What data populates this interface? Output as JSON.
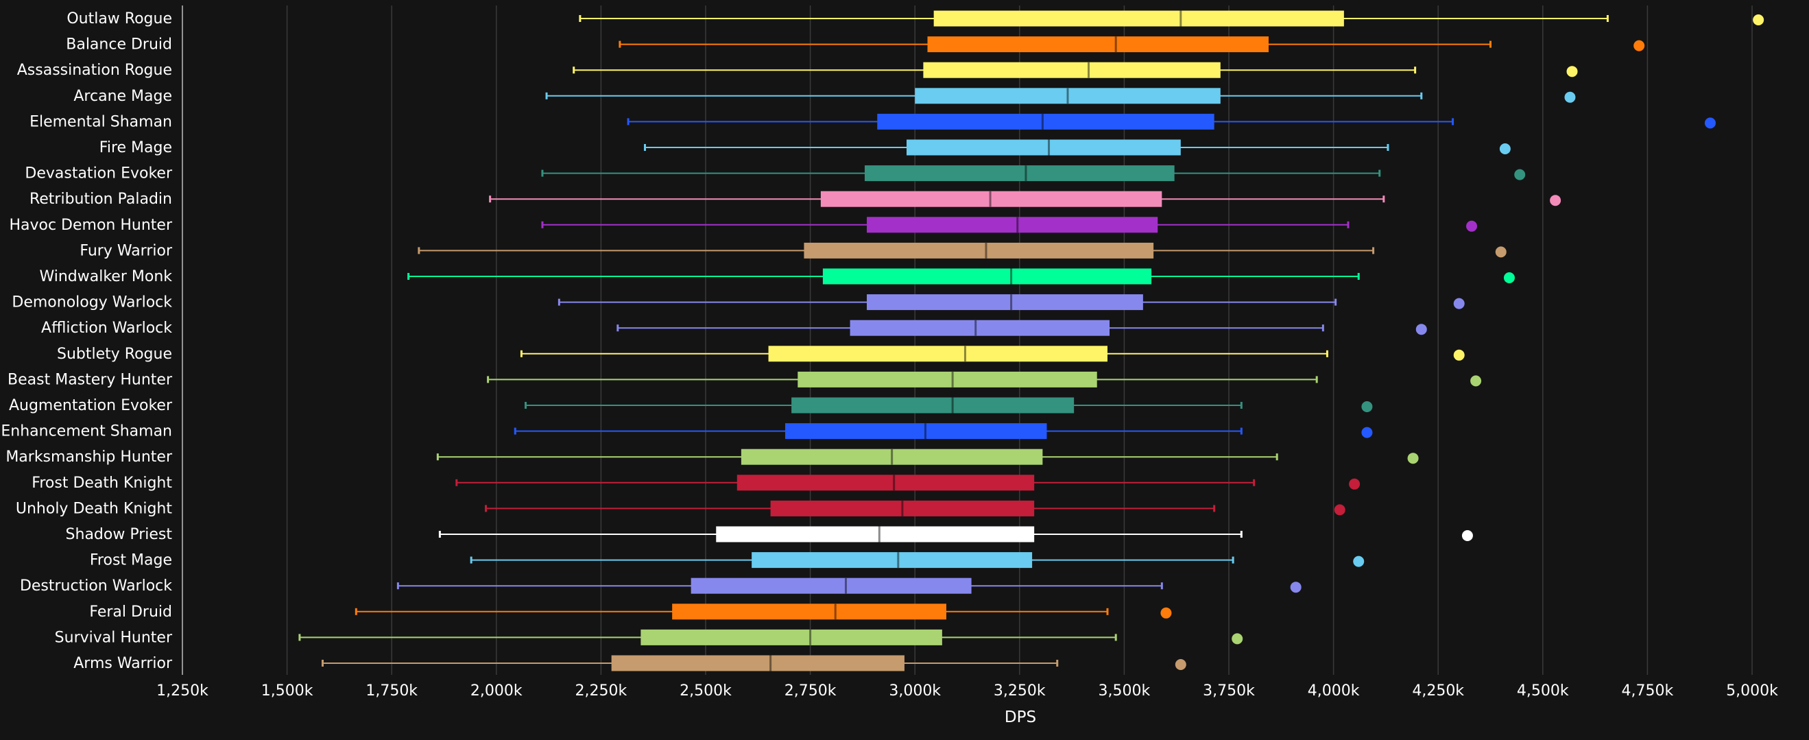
{
  "chart_data": {
    "type": "boxplot",
    "title": "",
    "xlabel": "DPS",
    "ylabel": "",
    "xlim": [
      1250000,
      5000000
    ],
    "tick_values": [
      1250000,
      1500000,
      1750000,
      2000000,
      2250000,
      2500000,
      2750000,
      3000000,
      3250000,
      3500000,
      3750000,
      4000000,
      4250000,
      4500000,
      4750000,
      5000000
    ],
    "tick_labels": [
      "1,250k",
      "1,500k",
      "1,750k",
      "2,000k",
      "2,250k",
      "2,500k",
      "2,750k",
      "3,000k",
      "3,250k",
      "3,500k",
      "3,750k",
      "4,000k",
      "4,250k",
      "4,500k",
      "4,750k",
      "5,000k"
    ],
    "grid": true,
    "legend": "none",
    "series": [
      {
        "label": "Outlaw Rogue",
        "color": "#FFF468",
        "min": 2200000,
        "q1": 3045000,
        "median": 3635000,
        "q3": 4025000,
        "max": 4655000,
        "outlier": 5015000
      },
      {
        "label": "Balance Druid",
        "color": "#FF7C0A",
        "min": 2295000,
        "q1": 3030000,
        "median": 3480000,
        "q3": 3845000,
        "max": 4375000,
        "outlier": 4730000
      },
      {
        "label": "Assassination Rogue",
        "color": "#FFF468",
        "min": 2185000,
        "q1": 3020000,
        "median": 3415000,
        "q3": 3730000,
        "max": 4195000,
        "outlier": 4570000
      },
      {
        "label": "Arcane Mage",
        "color": "#69CCF0",
        "min": 2120000,
        "q1": 3000000,
        "median": 3365000,
        "q3": 3730000,
        "max": 4210000,
        "outlier": 4565000
      },
      {
        "label": "Elemental Shaman",
        "color": "#2459FF",
        "min": 2315000,
        "q1": 2910000,
        "median": 3305000,
        "q3": 3715000,
        "max": 4285000,
        "outlier": 4900000
      },
      {
        "label": "Fire Mage",
        "color": "#69CCF0",
        "min": 2355000,
        "q1": 2980000,
        "median": 3320000,
        "q3": 3635000,
        "max": 4130000,
        "outlier": 4410000
      },
      {
        "label": "Devastation Evoker",
        "color": "#33937F",
        "min": 2110000,
        "q1": 2880000,
        "median": 3265000,
        "q3": 3620000,
        "max": 4110000,
        "outlier": 4445000
      },
      {
        "label": "Retribution Paladin",
        "color": "#F48CBA",
        "min": 1985000,
        "q1": 2775000,
        "median": 3180000,
        "q3": 3590000,
        "max": 4120000,
        "outlier": 4530000
      },
      {
        "label": "Havoc Demon Hunter",
        "color": "#A330C9",
        "min": 2110000,
        "q1": 2885000,
        "median": 3245000,
        "q3": 3580000,
        "max": 4035000,
        "outlier": 4330000
      },
      {
        "label": "Fury Warrior",
        "color": "#C69B6D",
        "min": 1815000,
        "q1": 2735000,
        "median": 3170000,
        "q3": 3570000,
        "max": 4095000,
        "outlier": 4400000
      },
      {
        "label": "Windwalker Monk",
        "color": "#00FF98",
        "min": 1790000,
        "q1": 2780000,
        "median": 3230000,
        "q3": 3565000,
        "max": 4060000,
        "outlier": 4420000
      },
      {
        "label": "Demonology Warlock",
        "color": "#8788EE",
        "min": 2150000,
        "q1": 2885000,
        "median": 3230000,
        "q3": 3545000,
        "max": 4005000,
        "outlier": 4300000
      },
      {
        "label": "Affliction Warlock",
        "color": "#8788EE",
        "min": 2290000,
        "q1": 2845000,
        "median": 3145000,
        "q3": 3465000,
        "max": 3975000,
        "outlier": 4210000
      },
      {
        "label": "Subtlety Rogue",
        "color": "#FFF468",
        "min": 2060000,
        "q1": 2650000,
        "median": 3120000,
        "q3": 3460000,
        "max": 3985000,
        "outlier": 4300000
      },
      {
        "label": "Beast Mastery Hunter",
        "color": "#AAD372",
        "min": 1980000,
        "q1": 2720000,
        "median": 3090000,
        "q3": 3435000,
        "max": 3960000,
        "outlier": 4340000
      },
      {
        "label": "Augmentation Evoker",
        "color": "#33937F",
        "min": 2070000,
        "q1": 2705000,
        "median": 3090000,
        "q3": 3380000,
        "max": 3780000,
        "outlier": 4080000
      },
      {
        "label": "Enhancement Shaman",
        "color": "#2459FF",
        "min": 2045000,
        "q1": 2690000,
        "median": 3025000,
        "q3": 3315000,
        "max": 3780000,
        "outlier": 4080000
      },
      {
        "label": "Marksmanship Hunter",
        "color": "#AAD372",
        "min": 1860000,
        "q1": 2585000,
        "median": 2945000,
        "q3": 3305000,
        "max": 3865000,
        "outlier": 4190000
      },
      {
        "label": "Frost Death Knight",
        "color": "#C41E3A",
        "min": 1905000,
        "q1": 2575000,
        "median": 2950000,
        "q3": 3285000,
        "max": 3810000,
        "outlier": 4050000
      },
      {
        "label": "Unholy Death Knight",
        "color": "#C41E3A",
        "min": 1975000,
        "q1": 2655000,
        "median": 2970000,
        "q3": 3285000,
        "max": 3715000,
        "outlier": 4015000
      },
      {
        "label": "Shadow Priest",
        "color": "#FFFFFF",
        "min": 1865000,
        "q1": 2525000,
        "median": 2915000,
        "q3": 3285000,
        "max": 3780000,
        "outlier": 4320000
      },
      {
        "label": "Frost Mage",
        "color": "#69CCF0",
        "min": 1940000,
        "q1": 2610000,
        "median": 2960000,
        "q3": 3280000,
        "max": 3760000,
        "outlier": 4060000
      },
      {
        "label": "Destruction Warlock",
        "color": "#8788EE",
        "min": 1765000,
        "q1": 2465000,
        "median": 2835000,
        "q3": 3135000,
        "max": 3590000,
        "outlier": 3910000
      },
      {
        "label": "Feral Druid",
        "color": "#FF7C0A",
        "min": 1665000,
        "q1": 2420000,
        "median": 2810000,
        "q3": 3075000,
        "max": 3460000,
        "outlier": 3600000
      },
      {
        "label": "Survival Hunter",
        "color": "#AAD372",
        "min": 1530000,
        "q1": 2345000,
        "median": 2750000,
        "q3": 3065000,
        "max": 3480000,
        "outlier": 3770000
      },
      {
        "label": "Arms Warrior",
        "color": "#C69B6D",
        "min": 1585000,
        "q1": 2275000,
        "median": 2655000,
        "q3": 2975000,
        "max": 3340000,
        "outlier": 3635000
      }
    ]
  }
}
